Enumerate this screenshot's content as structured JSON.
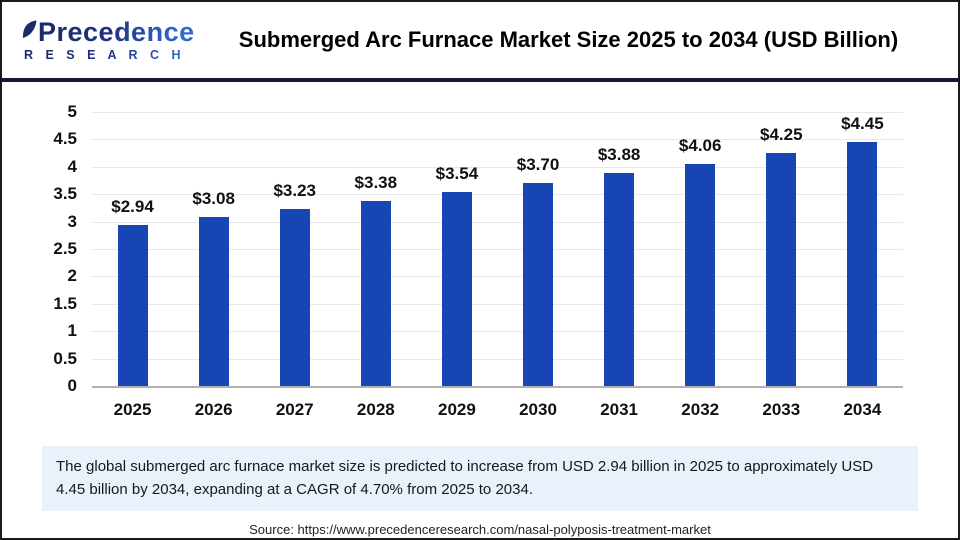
{
  "header": {
    "logo_line1": "Precedence",
    "logo_line2": "R E S E A R C H",
    "title": "Submerged Arc Furnace Market Size 2025 to 2034 (USD Billion)"
  },
  "chart_data": {
    "type": "bar",
    "title": "Submerged Arc Furnace Market Size 2025 to 2034 (USD Billion)",
    "categories": [
      "2025",
      "2026",
      "2027",
      "2028",
      "2029",
      "2030",
      "2031",
      "2032",
      "2033",
      "2034"
    ],
    "values": [
      2.94,
      3.08,
      3.23,
      3.38,
      3.54,
      3.7,
      3.88,
      4.06,
      4.25,
      4.45
    ],
    "value_labels": [
      "$2.94",
      "$3.08",
      "$3.23",
      "$3.38",
      "$3.54",
      "$3.70",
      "$3.88",
      "$4.06",
      "$4.25",
      "$4.45"
    ],
    "xlabel": "",
    "ylabel": "",
    "ylim": [
      0,
      5
    ],
    "ytick_step": 0.5,
    "yticks": [
      "0",
      "0.5",
      "1",
      "1.5",
      "2",
      "2.5",
      "3",
      "3.5",
      "4",
      "4.5",
      "5"
    ],
    "grid": true,
    "legend": false,
    "bar_color": "#1746b4"
  },
  "note": {
    "text": "The global submerged arc furnace market size is predicted to increase from USD 2.94 billion in 2025 to approximately USD 4.45 billion by 2034, expanding at a CAGR of 4.70% from 2025 to 2034."
  },
  "source": {
    "text": "Source: https://www.precedenceresearch.com/nasal-polyposis-treatment-market"
  },
  "colors": {
    "bar": "#1746b4",
    "separator_navy": "#11173d",
    "note_background": "#e9f1fb",
    "gridline": "#e8e8e8",
    "baseline": "#b0b0b0"
  }
}
